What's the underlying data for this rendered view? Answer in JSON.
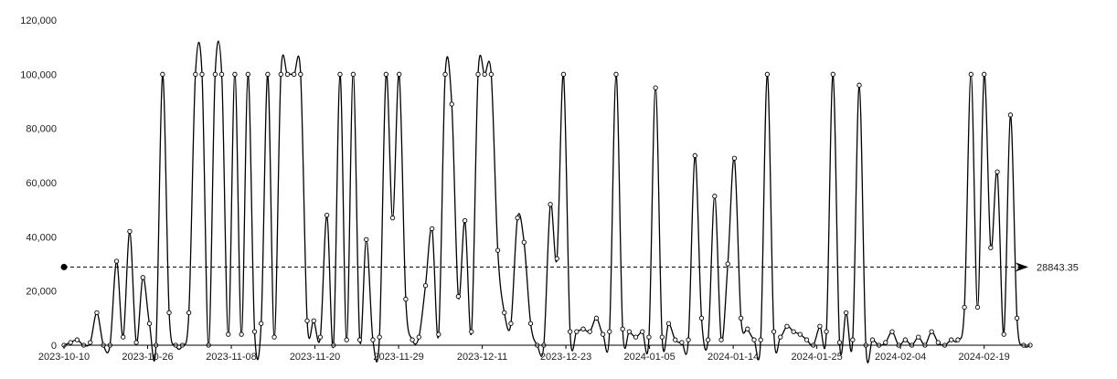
{
  "chart_data": {
    "type": "line",
    "title": "",
    "xlabel": "",
    "ylabel": "",
    "ylim": [
      0,
      120000
    ],
    "y_ticks": [
      "0",
      "20,000",
      "40,000",
      "60,000",
      "80,000",
      "100,000",
      "120,000"
    ],
    "x_tick_labels": [
      "2023-10-10",
      "2023-10-26",
      "2023-11-08",
      "2023-11-20",
      "2023-11-29",
      "2023-12-11",
      "2023-12-23",
      "2024-01-05",
      "2024-01-14",
      "2024-01-25",
      "2024-02-04",
      "2024-02-19"
    ],
    "grid": false,
    "smooth": true,
    "markers": "hollow-circle",
    "mean_line": {
      "value": 28843.35,
      "label": "28843.35",
      "style": "dashed"
    },
    "colors": {
      "line": "#000000",
      "marker_fill": "#ffffff",
      "axis": "#000000"
    },
    "series": [
      {
        "values": [
          0,
          1000,
          2000,
          0,
          1000,
          12000,
          0,
          0,
          31000,
          3000,
          42000,
          1000,
          25000,
          8000,
          0,
          100000,
          12000,
          0,
          0,
          12000,
          100000,
          100000,
          0,
          100000,
          100000,
          4000,
          100000,
          4000,
          100000,
          5000,
          8000,
          100000,
          3000,
          100000,
          100000,
          100000,
          100000,
          9000,
          9000,
          3000,
          48000,
          0,
          100000,
          2000,
          100000,
          2000,
          39000,
          2000,
          3000,
          100000,
          47000,
          100000,
          17000,
          2000,
          3000,
          22000,
          43000,
          4000,
          100000,
          89000,
          18000,
          46000,
          5000,
          100000,
          100000,
          100000,
          35000,
          12000,
          8000,
          47000,
          38000,
          8000,
          0,
          0,
          52000,
          32000,
          100000,
          5000,
          5000,
          6000,
          5000,
          10000,
          4000,
          5000,
          100000,
          6000,
          5000,
          3000,
          5000,
          3000,
          95000,
          3000,
          8000,
          2000,
          1000,
          2000,
          70000,
          10000,
          2000,
          55000,
          2000,
          30000,
          69000,
          10000,
          6000,
          2000,
          2000,
          100000,
          5000,
          3000,
          7000,
          5000,
          4000,
          2000,
          0,
          7000,
          5000,
          100000,
          1000,
          12000,
          2000,
          96000,
          0,
          2000,
          0,
          1000,
          5000,
          0,
          2000,
          0,
          3000,
          0,
          5000,
          1000,
          0,
          2000,
          2000,
          14000,
          100000,
          14000,
          100000,
          36000,
          64000,
          4000,
          85000,
          10000,
          0,
          0
        ]
      }
    ]
  }
}
